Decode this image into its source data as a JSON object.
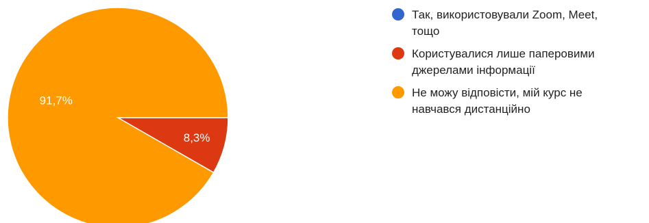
{
  "chart_data": {
    "type": "pie",
    "title": "",
    "legend_position": "right",
    "series": [
      {
        "name": "Так, використовували Zoom, Meet,\nтощо",
        "value": 0,
        "label": "",
        "color": "#3366cc"
      },
      {
        "name": "Користувалися лише паперовими\nджерелами інформації",
        "value": 8.3,
        "label": "8,3%",
        "color": "#dc3912"
      },
      {
        "name": "Не можу відповісти, мій курс не\nнавчався дистанційно",
        "value": 91.7,
        "label": "91,7%",
        "color": "#ff9900"
      }
    ]
  }
}
